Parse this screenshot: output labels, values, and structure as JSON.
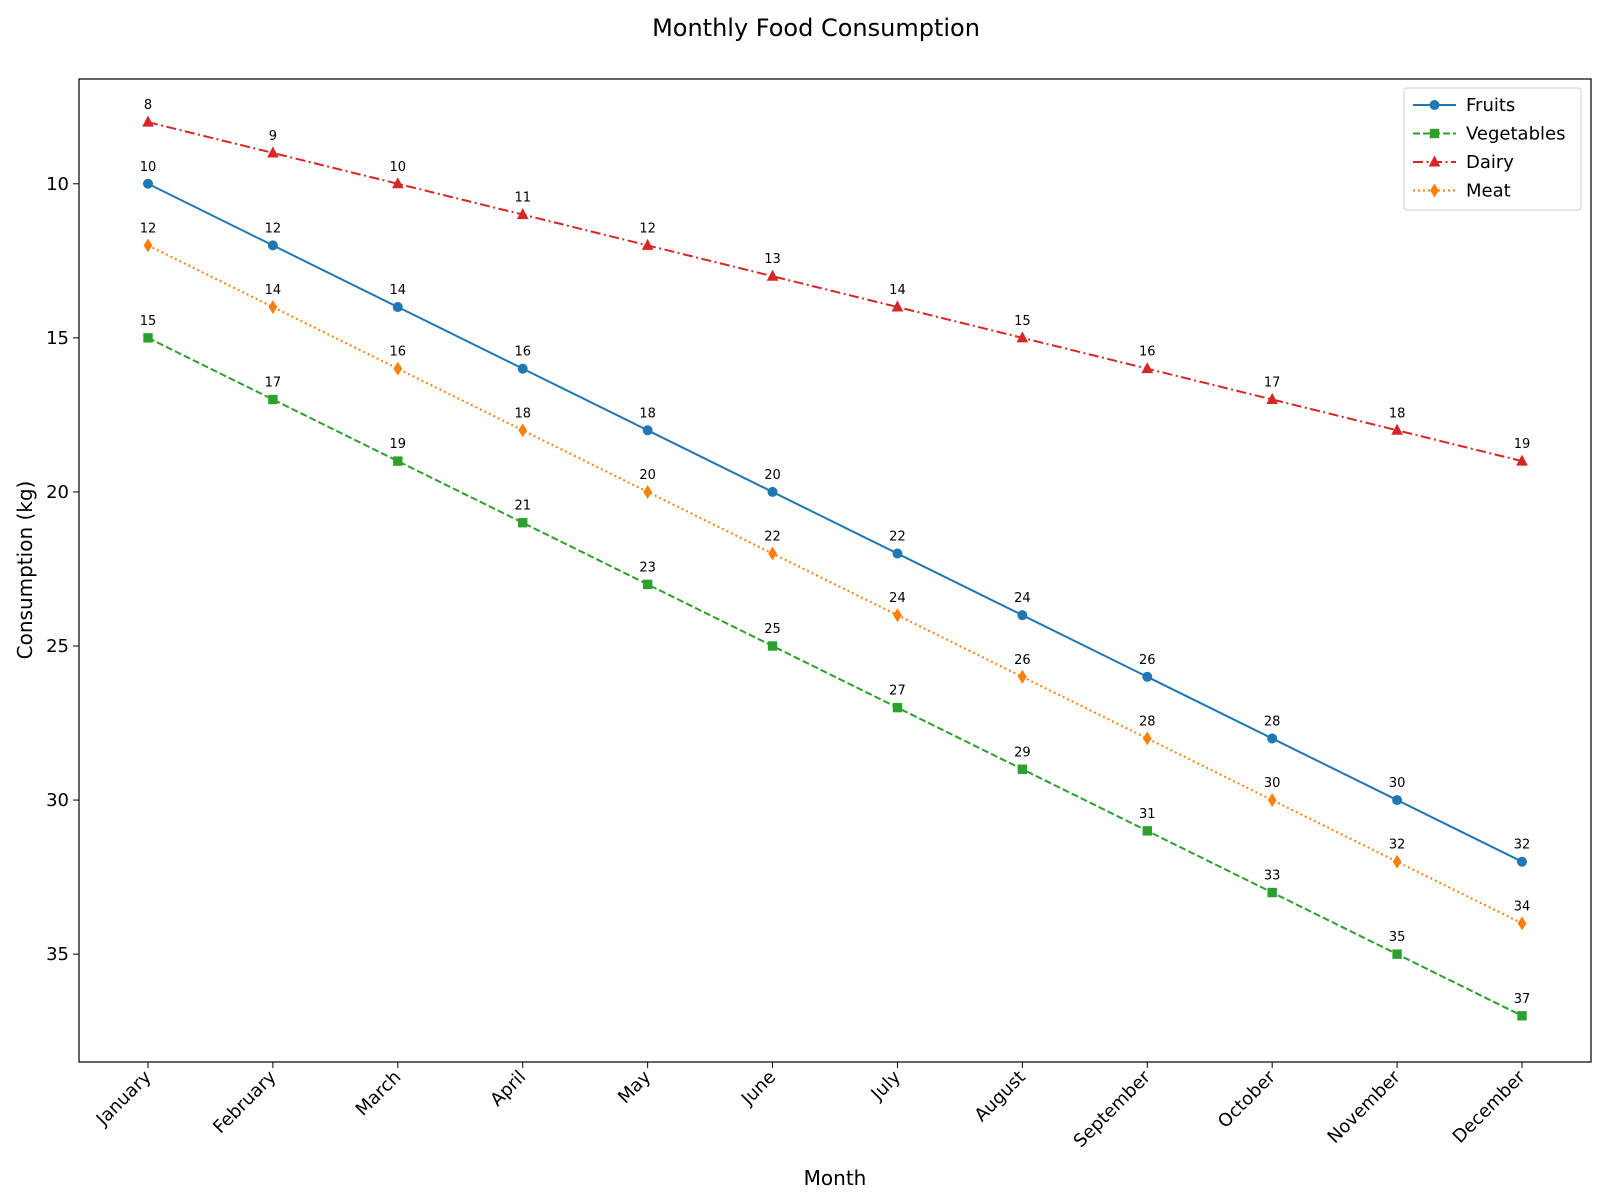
{
  "chart_data": {
    "type": "line",
    "title": "Monthly Food Consumption",
    "xlabel": "Month",
    "ylabel": "Consumption (kg)",
    "categories": [
      "January",
      "February",
      "March",
      "April",
      "May",
      "June",
      "July",
      "August",
      "September",
      "October",
      "November",
      "December"
    ],
    "y_inverted": true,
    "ylim": [
      6.6,
      38.5
    ],
    "y_ticks": [
      10,
      15,
      20,
      25,
      30,
      35
    ],
    "grid": false,
    "legend_position": "top-right",
    "x_tick_rotation": "45 degrees",
    "series": [
      {
        "name": "Fruits",
        "color": "#1f77b4",
        "line_style": "solid",
        "marker": "circle",
        "values": [
          10,
          12,
          14,
          16,
          18,
          20,
          22,
          24,
          26,
          28,
          30,
          32
        ]
      },
      {
        "name": "Vegetables",
        "color": "#2ca02c",
        "line_style": "dashed",
        "marker": "square",
        "values": [
          15,
          17,
          19,
          21,
          23,
          25,
          27,
          29,
          31,
          33,
          35,
          37
        ]
      },
      {
        "name": "Dairy",
        "color": "#d62728",
        "line_style": "dashdot",
        "marker": "triangle",
        "values": [
          8,
          9,
          10,
          11,
          12,
          13,
          14,
          15,
          16,
          17,
          18,
          19
        ]
      },
      {
        "name": "Meat",
        "color": "#ff7f0e",
        "line_style": "dotted",
        "marker": "diamond",
        "values": [
          12,
          14,
          16,
          18,
          20,
          22,
          24,
          26,
          28,
          30,
          32,
          34
        ]
      }
    ]
  }
}
